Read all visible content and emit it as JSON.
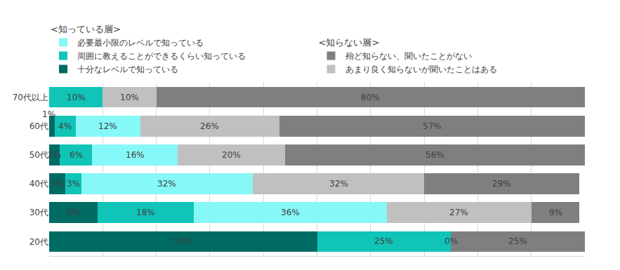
{
  "chart_data": {
    "type": "bar",
    "orientation": "horizontal",
    "stacked": true,
    "data_labels": true,
    "grid": true,
    "tick_labels": "y",
    "legend": "top",
    "categories": [
      "70代以上",
      "60代",
      "50代",
      "40代",
      "30代",
      "20代"
    ],
    "xlim": [
      0,
      100
    ],
    "xticks": [
      0,
      10,
      20,
      30,
      40,
      50,
      60,
      70,
      80,
      90,
      100
    ],
    "series": [
      {
        "name": "十分なレベルで知っている",
        "group": "<知っている層>",
        "color": "#006b63",
        "values": [
          0,
          1,
          2,
          3,
          9,
          50
        ],
        "value_labels": [
          null,
          "1%",
          "2%",
          "3%",
          "9%",
          "50%"
        ]
      },
      {
        "name": "周囲に教えることができるくらい知っている",
        "group": "<知っている層>",
        "color": "#10c4b8",
        "values": [
          10,
          4,
          6,
          3,
          18,
          25
        ],
        "value_labels": [
          "10%",
          "4%",
          "6%",
          "3%",
          "18%",
          "25%"
        ]
      },
      {
        "name": "必要最小限のレベルで知っている",
        "group": "<知っている層>",
        "color": "#86f8f8",
        "values": [
          0,
          12,
          16,
          32,
          36,
          0
        ],
        "value_labels": [
          null,
          "12%",
          "16%",
          "32%",
          "36%",
          "0%"
        ]
      },
      {
        "name": "あまり良く知らないが聞いたことはある",
        "group": "<知らない層>",
        "color": "#c0c0c0",
        "values": [
          10,
          26,
          20,
          32,
          27,
          0
        ],
        "value_labels": [
          "10%",
          "26%",
          "20%",
          "32%",
          "27%",
          null
        ]
      },
      {
        "name": "殆ど知らない、聞いたことがない",
        "group": "<知らない層>",
        "color": "#7f7f7f",
        "values": [
          80,
          57,
          56,
          29,
          9,
          25
        ],
        "value_labels": [
          "80%",
          "57%",
          "56%",
          "29%",
          "9%",
          "25%"
        ]
      }
    ]
  }
}
